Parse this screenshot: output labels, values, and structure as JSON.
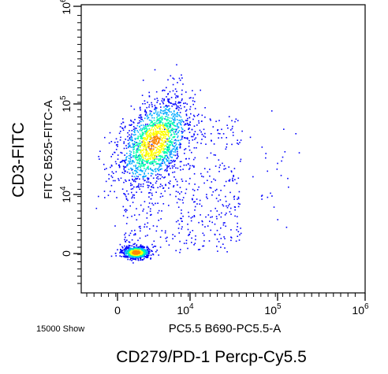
{
  "chart_data": {
    "type": "scatter",
    "style": "flow-cytometry density dot plot",
    "x_axis_title": "PC5.5 B690-PC5.5-A",
    "y_axis_title": "FITC B525-FITC-A",
    "x_outer_label": "CD279/PD-1  Percp-Cy5.5",
    "y_outer_label": "CD3-FITC",
    "event_count_label": "15000 Show",
    "x_scale": "biexponential",
    "y_scale": "biexponential",
    "x_ticks": [
      {
        "base": "0",
        "exp": ""
      },
      {
        "base": "10",
        "exp": "4"
      },
      {
        "base": "10",
        "exp": "5"
      },
      {
        "base": "10",
        "exp": "6"
      }
    ],
    "y_ticks": [
      {
        "base": "0",
        "exp": ""
      },
      {
        "base": "10",
        "exp": "4"
      },
      {
        "base": "10",
        "exp": "5"
      },
      {
        "base": "10",
        "exp": "6"
      }
    ],
    "grid": false,
    "density_colors": [
      "#0000ff",
      "#00aaff",
      "#00ffaa",
      "#ffff00",
      "#ff8800"
    ],
    "populations": [
      {
        "center": [
          0.3,
          0.0
        ],
        "note": "tight cluster near origin, densest (yellow/orange core)"
      },
      {
        "center": [
          0.85,
          0.62
        ],
        "note": "elongated diagonal cloud, cyan/green core"
      }
    ]
  }
}
